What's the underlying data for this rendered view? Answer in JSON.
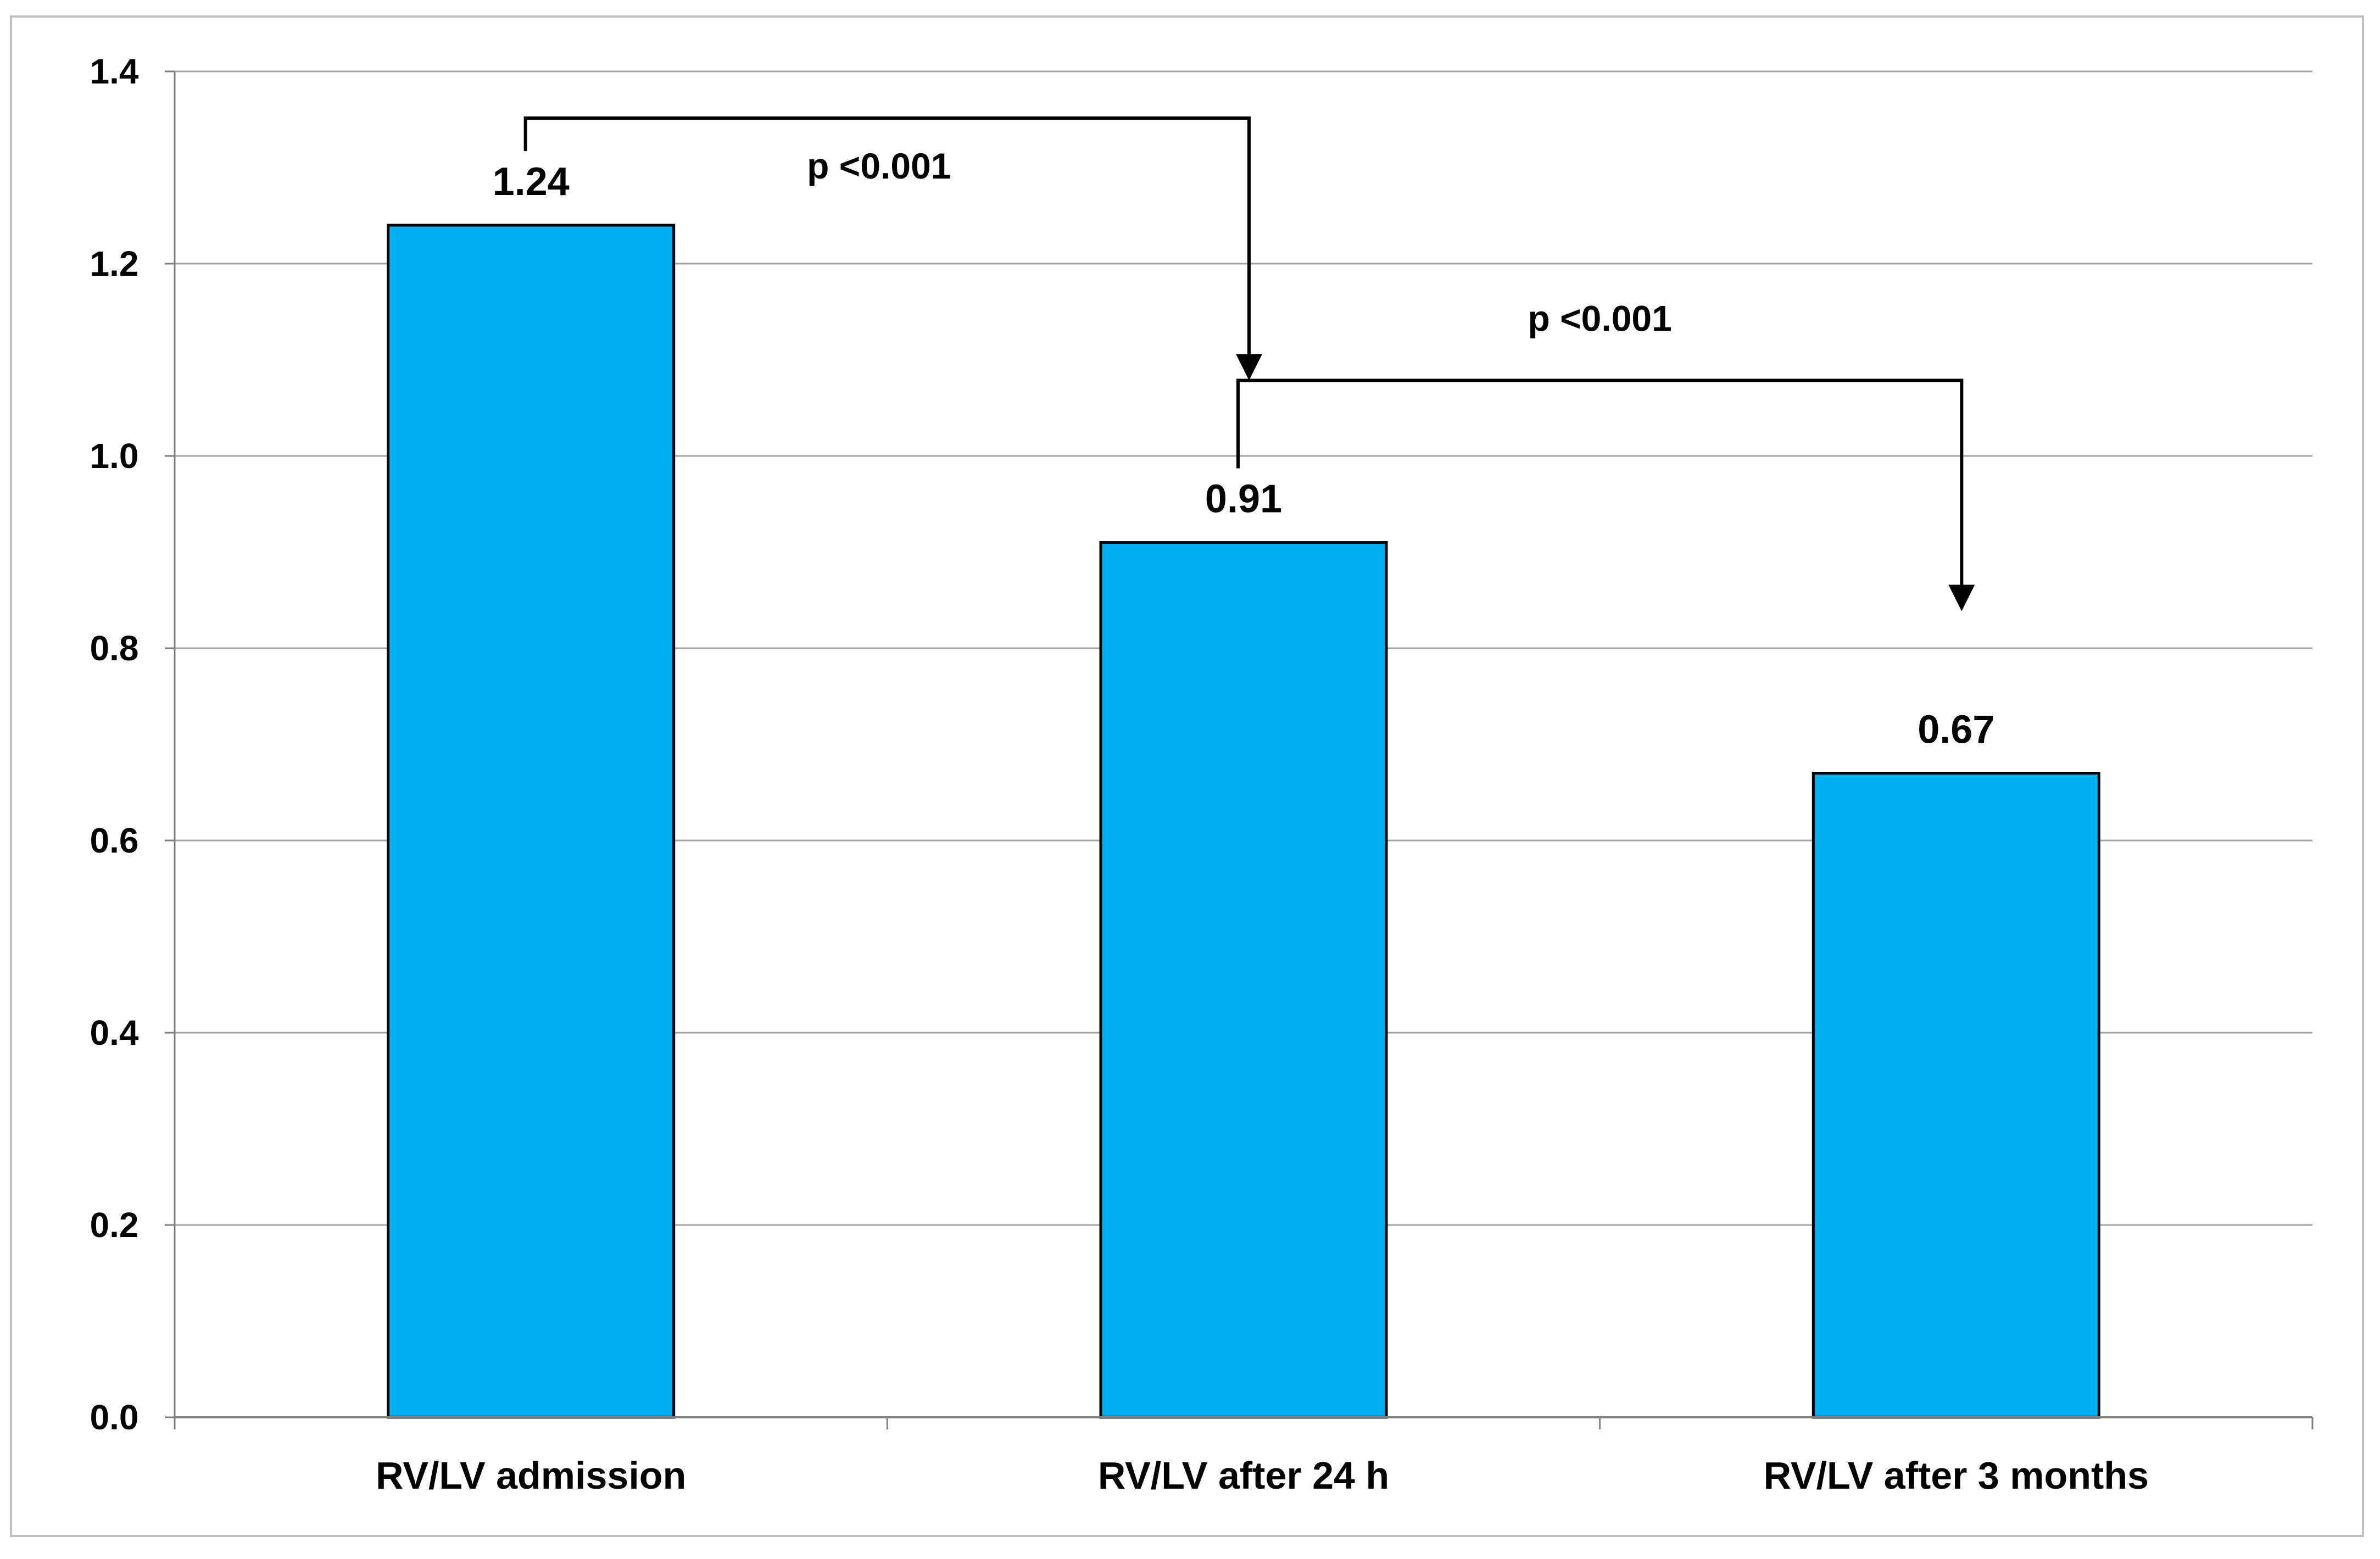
{
  "chart_data": {
    "type": "bar",
    "title": "",
    "xlabel": "",
    "ylabel": "",
    "categories": [
      "RV/LV admission",
      "RV/LV after 24 h",
      "RV/LV after 3 months"
    ],
    "values": [
      1.24,
      0.91,
      0.67
    ],
    "data_labels": [
      "1.24",
      "0.91",
      "0.67"
    ],
    "ylim": [
      0,
      1.4
    ],
    "yticks": [
      0.0,
      0.2,
      0.4,
      0.6,
      0.8,
      1.0,
      1.2,
      1.4
    ],
    "ytick_labels": [
      "0.0",
      "0.2",
      "0.4",
      "0.6",
      "0.8",
      "1.0",
      "1.2",
      "1.4"
    ],
    "grid": true,
    "legend": "none",
    "bar_color": "#00b0f0",
    "bar_edge_color": "#000000",
    "annotations": [
      {
        "from": "RV/LV admission",
        "to": "RV/LV after 24 h",
        "text": "p <0.001"
      },
      {
        "from": "RV/LV after 24 h",
        "to": "RV/LV after 3 months",
        "text": "p <0.001"
      }
    ]
  }
}
